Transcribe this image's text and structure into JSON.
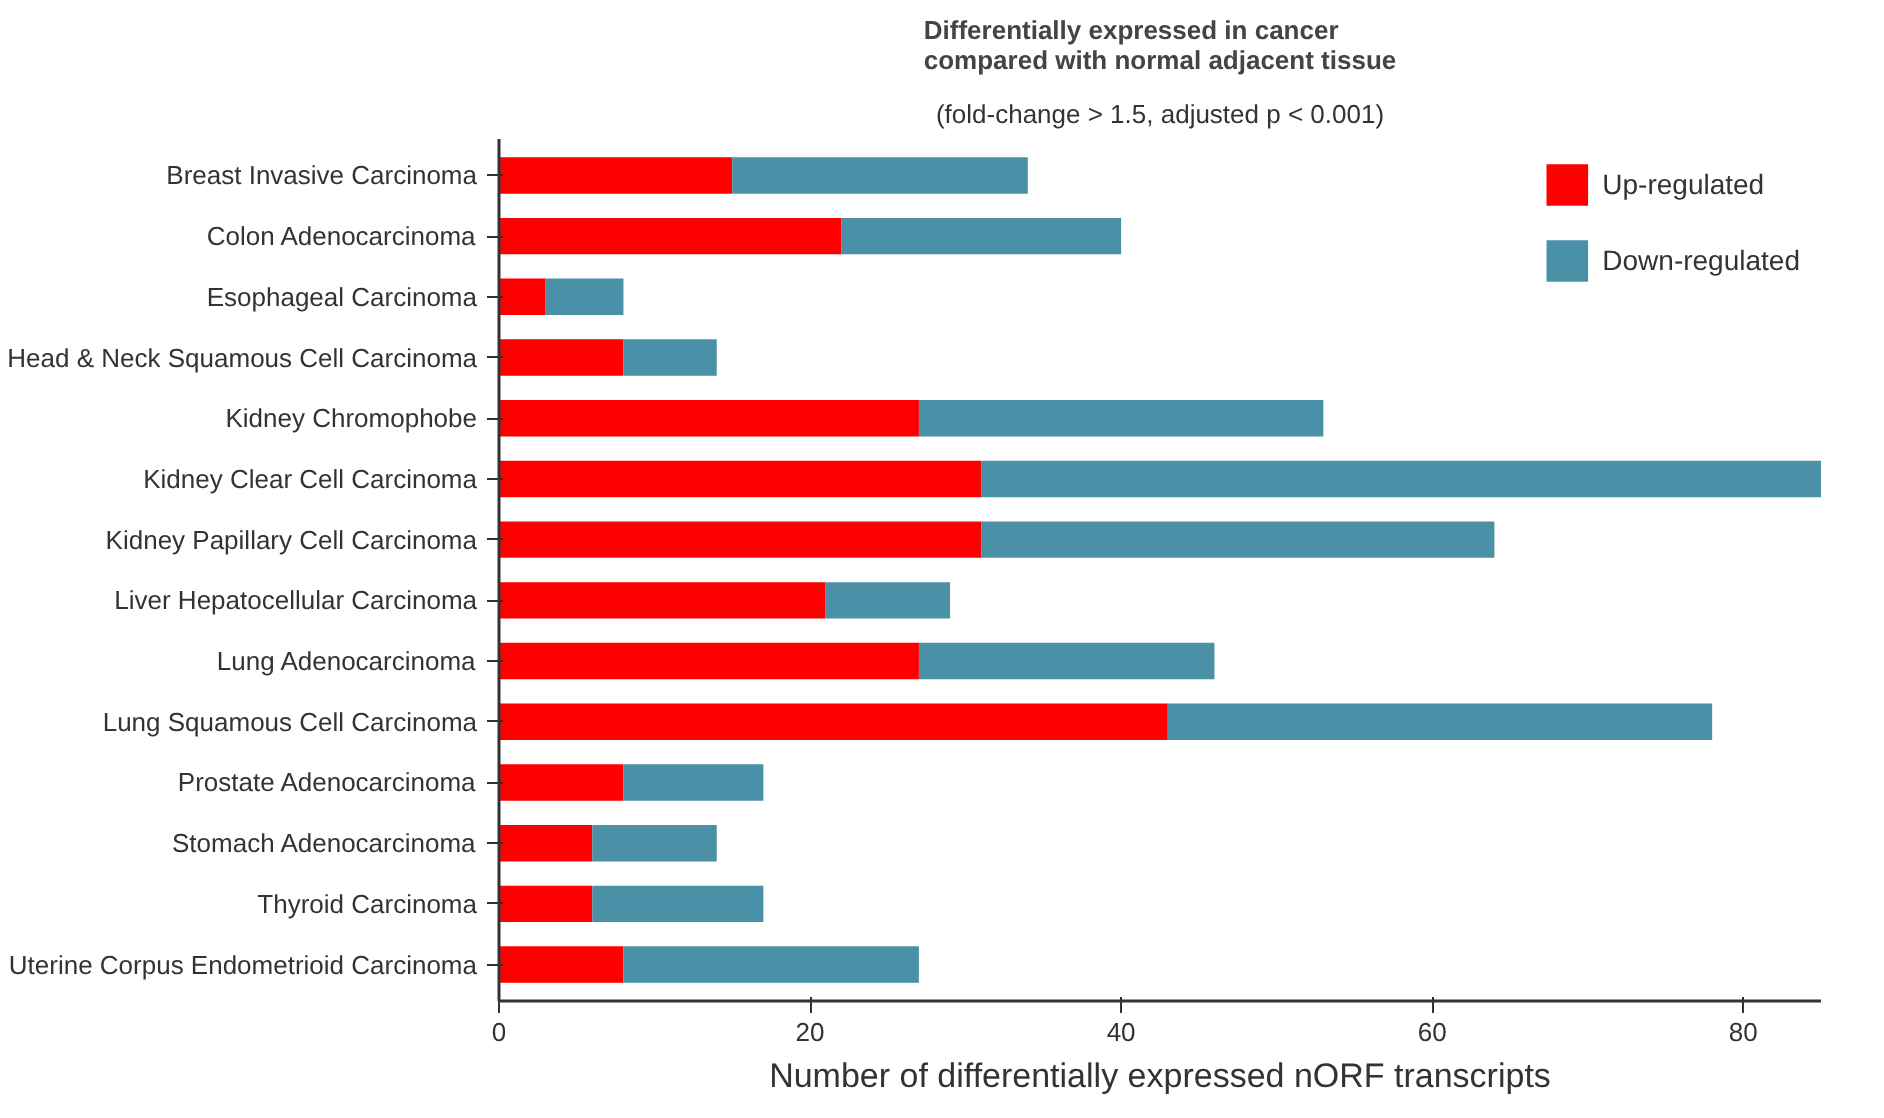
{
  "chart_data": {
    "type": "bar",
    "orientation": "horizontal",
    "stacked": true,
    "title": "Differentially expressed in cancer\ncompared with normal adjacent tissue",
    "subtitle": "(fold-change > 1.5, adjusted p < 0.001)",
    "xlabel": "Number of differentially expressed nORF transcripts",
    "categories": [
      "Breast Invasive Carcinoma",
      "Colon Adenocarcinoma",
      "Esophageal Carcinoma",
      "Head & Neck Squamous Cell Carcinoma",
      "Kidney Chromophobe",
      "Kidney Clear Cell Carcinoma",
      "Kidney Papillary Cell Carcinoma",
      "Liver Hepatocellular Carcinoma",
      "Lung Adenocarcinoma",
      "Lung Squamous Cell Carcinoma",
      "Prostate Adenocarcinoma",
      "Stomach Adenocarcinoma",
      "Thyroid Carcinoma",
      "Uterine Corpus Endometrioid Carcinoma"
    ],
    "series": [
      {
        "name": "Up-regulated",
        "color": "#ff0000",
        "values": [
          15,
          22,
          3,
          8,
          27,
          31,
          31,
          21,
          27,
          43,
          8,
          6,
          6,
          8
        ]
      },
      {
        "name": "Down-regulated",
        "color": "#4a91a8",
        "values": [
          19,
          18,
          5,
          6,
          26,
          54,
          33,
          8,
          19,
          35,
          9,
          8,
          11,
          19
        ]
      }
    ],
    "xlim": [
      0,
      85
    ],
    "xticks": [
      0,
      20,
      40,
      60,
      80
    ],
    "grid": false,
    "legend": "top right"
  }
}
